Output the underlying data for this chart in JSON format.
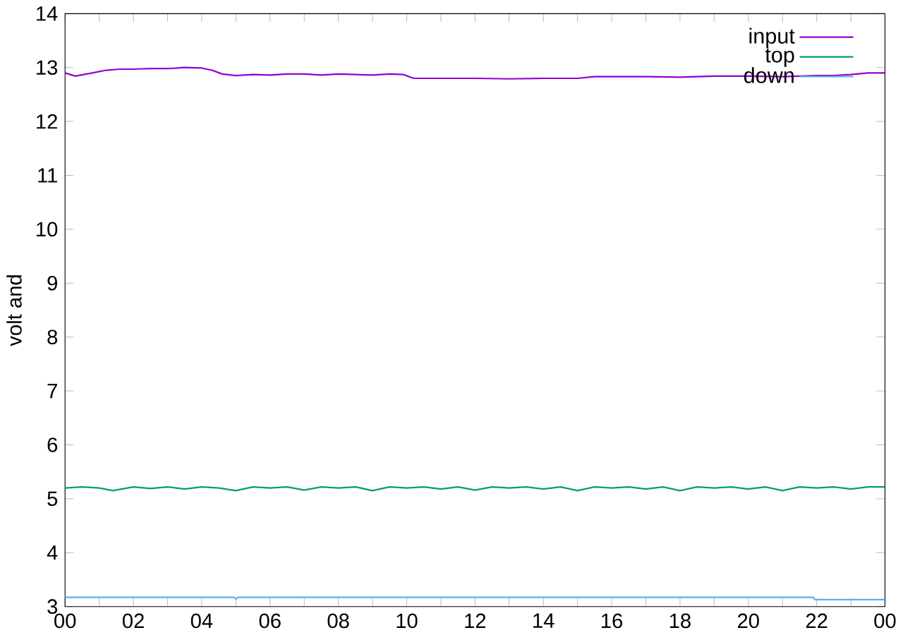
{
  "chart_data": {
    "type": "line",
    "ylabel": "volt and",
    "legend": "top right",
    "xlim": [
      0,
      24
    ],
    "ylim": [
      3,
      14
    ],
    "xticks": [
      {
        "value": 0,
        "label": "00"
      },
      {
        "value": 1,
        "label": null
      },
      {
        "value": 2,
        "label": "02"
      },
      {
        "value": 3,
        "label": null
      },
      {
        "value": 4,
        "label": "04"
      },
      {
        "value": 5,
        "label": null
      },
      {
        "value": 6,
        "label": "06"
      },
      {
        "value": 7,
        "label": null
      },
      {
        "value": 8,
        "label": "08"
      },
      {
        "value": 9,
        "label": null
      },
      {
        "value": 10,
        "label": "10"
      },
      {
        "value": 11,
        "label": null
      },
      {
        "value": 12,
        "label": "12"
      },
      {
        "value": 13,
        "label": null
      },
      {
        "value": 14,
        "label": "14"
      },
      {
        "value": 15,
        "label": null
      },
      {
        "value": 16,
        "label": "16"
      },
      {
        "value": 17,
        "label": null
      },
      {
        "value": 18,
        "label": "18"
      },
      {
        "value": 19,
        "label": null
      },
      {
        "value": 20,
        "label": "20"
      },
      {
        "value": 21,
        "label": null
      },
      {
        "value": 22,
        "label": "22"
      },
      {
        "value": 23,
        "label": null
      },
      {
        "value": 24,
        "label": "00"
      }
    ],
    "yticks": [
      3,
      4,
      5,
      6,
      7,
      8,
      9,
      10,
      11,
      12,
      13,
      14
    ],
    "series": [
      {
        "name": "input",
        "color": "#9400d3",
        "x": [
          0,
          0.3,
          0.8,
          1.2,
          1.6,
          2,
          2.5,
          3,
          3.5,
          4,
          4.3,
          4.6,
          5,
          5.5,
          6,
          6.5,
          7,
          7.5,
          8,
          8.5,
          9,
          9.5,
          9.9,
          10.2,
          11,
          12,
          13,
          14,
          15,
          15.5,
          16,
          17,
          18,
          19,
          20,
          21,
          22,
          22.5,
          23,
          23.5,
          24
        ],
        "values": [
          12.9,
          12.84,
          12.9,
          12.95,
          12.97,
          12.97,
          12.98,
          12.98,
          13.0,
          12.99,
          12.95,
          12.88,
          12.85,
          12.87,
          12.86,
          12.88,
          12.88,
          12.86,
          12.88,
          12.87,
          12.86,
          12.88,
          12.87,
          12.8,
          12.8,
          12.8,
          12.79,
          12.8,
          12.8,
          12.83,
          12.83,
          12.83,
          12.82,
          12.84,
          12.84,
          12.83,
          12.85,
          12.85,
          12.87,
          12.9,
          12.9
        ]
      },
      {
        "name": "top",
        "color": "#009e73",
        "x": [
          0,
          0.5,
          1,
          1.4,
          2,
          2.5,
          3,
          3.5,
          4,
          4.5,
          5,
          5.5,
          6,
          6.5,
          7,
          7.5,
          8,
          8.5,
          9,
          9.5,
          10,
          10.5,
          11,
          11.5,
          12,
          12.5,
          13,
          13.5,
          14,
          14.5,
          15,
          15.5,
          16,
          16.5,
          17,
          17.5,
          18,
          18.5,
          19,
          19.5,
          20,
          20.5,
          21,
          21.5,
          22,
          22.5,
          23,
          23.5,
          24
        ],
        "values": [
          5.2,
          5.22,
          5.2,
          5.15,
          5.22,
          5.19,
          5.22,
          5.18,
          5.22,
          5.2,
          5.15,
          5.22,
          5.2,
          5.22,
          5.16,
          5.22,
          5.2,
          5.22,
          5.15,
          5.22,
          5.2,
          5.22,
          5.18,
          5.22,
          5.16,
          5.22,
          5.2,
          5.22,
          5.18,
          5.22,
          5.15,
          5.22,
          5.2,
          5.22,
          5.18,
          5.22,
          5.15,
          5.22,
          5.2,
          5.22,
          5.18,
          5.22,
          5.15,
          5.22,
          5.2,
          5.22,
          5.18,
          5.22,
          5.22
        ]
      },
      {
        "name": "down",
        "color": "#56b4e9",
        "x": [
          0,
          4.95,
          5.0,
          5.05,
          21.9,
          21.95,
          24
        ],
        "values": [
          3.17,
          3.17,
          3.14,
          3.17,
          3.17,
          3.13,
          3.13
        ]
      }
    ]
  }
}
